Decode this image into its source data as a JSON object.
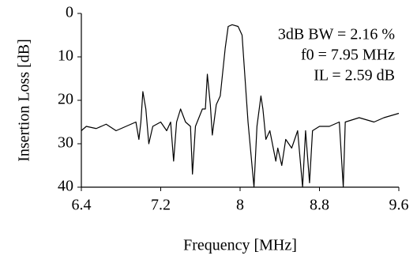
{
  "chart_data": {
    "type": "line",
    "xlabel": "Frequency [MHz]",
    "ylabel": "Insertion Loss [dB]",
    "annotations": [
      "3dB BW = 2.16 %",
      "f0 = 7.95 MHz",
      "IL = 2.59 dB"
    ],
    "xlim": [
      6.4,
      9.6
    ],
    "xticks": [
      6.4,
      7.2,
      8,
      8.8,
      9.6
    ],
    "ylim": [
      40,
      0
    ],
    "yticks": [
      0,
      10,
      20,
      30,
      40
    ],
    "series": [
      {
        "color": "#000000",
        "x": [
          6.4,
          6.45,
          6.55,
          6.65,
          6.75,
          6.85,
          6.95,
          6.98,
          7.0,
          7.02,
          7.05,
          7.08,
          7.12,
          7.2,
          7.26,
          7.3,
          7.33,
          7.36,
          7.4,
          7.45,
          7.5,
          7.52,
          7.55,
          7.62,
          7.65,
          7.67,
          7.7,
          7.72,
          7.76,
          7.8,
          7.85,
          7.88,
          7.92,
          7.98,
          8.02,
          8.05,
          8.08,
          8.14,
          8.17,
          8.21,
          8.23,
          8.26,
          8.3,
          8.36,
          8.38,
          8.42,
          8.46,
          8.52,
          8.58,
          8.63,
          8.66,
          8.7,
          8.73,
          8.8,
          8.9,
          9.0,
          9.04,
          9.06,
          9.2,
          9.35,
          9.45,
          9.6
        ],
        "values": [
          27,
          26,
          26.5,
          25.5,
          27,
          26,
          25,
          29,
          25,
          18,
          22,
          30,
          26,
          25,
          27,
          25,
          34,
          25,
          22,
          25,
          26,
          37,
          26,
          22,
          22,
          14,
          21,
          28,
          21,
          19,
          8,
          3,
          2.6,
          3,
          5,
          15,
          25,
          40,
          26,
          19,
          22,
          29,
          27,
          34,
          31,
          35,
          29,
          31,
          27,
          40,
          27,
          39,
          27,
          26,
          26,
          25,
          40,
          25,
          24,
          25,
          24,
          23
        ]
      }
    ]
  }
}
